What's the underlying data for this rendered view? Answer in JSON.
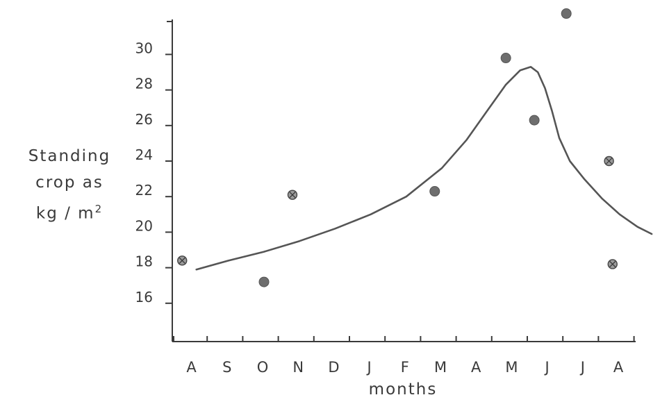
{
  "chart_data": {
    "type": "scatter",
    "title": "",
    "ylabel": {
      "line1": "Standing",
      "line2": "crop as",
      "line3": "kg / m",
      "superscript": "2"
    },
    "xlabel": "months",
    "x_categories": [
      "A",
      "S",
      "O",
      "N",
      "D",
      "J",
      "F",
      "M",
      "A",
      "M",
      "J",
      "J",
      "A"
    ],
    "yticks": [
      16,
      18,
      20,
      22,
      24,
      26,
      28,
      30
    ],
    "ytick_labels": [
      "16",
      "18",
      "20",
      "22",
      "24",
      "26",
      "28",
      "30"
    ],
    "ylim": [
      14,
      32
    ],
    "grid": false,
    "points": [
      {
        "x": 0.2,
        "y": 18.4,
        "style": "cross"
      },
      {
        "x": 2.5,
        "y": 17.2,
        "style": "solid"
      },
      {
        "x": 3.3,
        "y": 22.1,
        "style": "cross"
      },
      {
        "x": 7.3,
        "y": 22.3,
        "style": "solid"
      },
      {
        "x": 9.3,
        "y": 29.8,
        "style": "solid"
      },
      {
        "x": 10.1,
        "y": 26.3,
        "style": "solid"
      },
      {
        "x": 11.0,
        "y": 32.3,
        "style": "solid"
      },
      {
        "x": 12.2,
        "y": 24.0,
        "style": "cross"
      },
      {
        "x": 12.3,
        "y": 18.2,
        "style": "cross"
      }
    ],
    "trend": {
      "x": [
        0.6,
        1.5,
        2.5,
        3.5,
        4.5,
        5.5,
        6.5,
        7.5,
        8.2,
        8.8,
        9.3,
        9.7,
        10.0,
        10.2,
        10.4,
        10.6,
        10.8,
        11.1,
        11.5,
        12.0,
        12.5,
        13.0,
        13.4
      ],
      "y": [
        17.9,
        18.4,
        18.9,
        19.5,
        20.2,
        21.0,
        22.0,
        23.6,
        25.2,
        26.9,
        28.3,
        29.1,
        29.3,
        29.0,
        28.1,
        26.8,
        25.3,
        24.0,
        23.0,
        21.9,
        21.0,
        20.3,
        19.9
      ]
    },
    "colors": {
      "ink": "#3a3a3a",
      "curve": "#555555",
      "point_fill": "#6e6e6e",
      "cross_fill": "#9a9a9a"
    }
  }
}
